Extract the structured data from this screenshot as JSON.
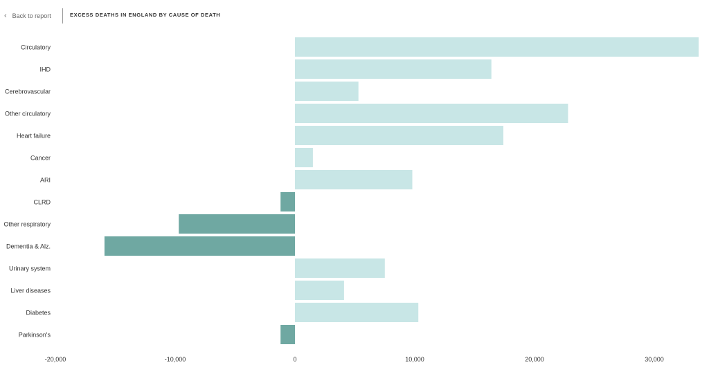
{
  "header": {
    "back_label": "Back to report",
    "back_icon": "chevron-left-icon",
    "title": "EXCESS DEATHS IN ENGLAND BY CAUSE OF DEATH"
  },
  "colors": {
    "positive": "#c8e6e6",
    "negative": "#6fa8a2",
    "label": "#333333"
  },
  "chart_data": {
    "type": "bar",
    "orientation": "horizontal",
    "title": "EXCESS DEATHS IN ENGLAND BY CAUSE OF DEATH",
    "xlabel": "",
    "ylabel": "",
    "xlim": [
      -20000,
      33800
    ],
    "xticks": [
      -20000,
      -10000,
      0,
      10000,
      20000,
      30000
    ],
    "xtick_labels": [
      "-20,000",
      "-10,000",
      "0",
      "10,000",
      "20,000",
      "30,000"
    ],
    "grid": false,
    "categories": [
      "Circulatory",
      "IHD",
      "Cerebrovascular",
      "Other circulatory",
      "Heart failure",
      "Cancer",
      "ARI",
      "CLRD",
      "Other respiratory",
      "Dementia & Alz.",
      "Urinary system",
      "Liver diseases",
      "Diabetes",
      "Parkinson's"
    ],
    "values": [
      33700,
      16400,
      5300,
      22800,
      17400,
      1500,
      9800,
      -1200,
      -9700,
      -15900,
      7500,
      4100,
      10300,
      -1200
    ]
  }
}
